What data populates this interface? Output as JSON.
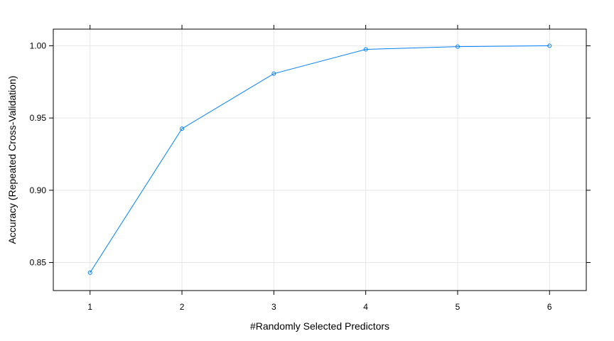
{
  "chart_data": {
    "type": "line",
    "xlabel": "#Randomly Selected Predictors",
    "ylabel": "Accuracy (Repeated Cross-Validation)",
    "xlim": [
      0.6,
      6.4
    ],
    "ylim": [
      0.8306,
      1.0115
    ],
    "x_ticks": [
      1,
      2,
      3,
      4,
      5,
      6
    ],
    "y_ticks": [
      0.85,
      0.9,
      0.95,
      1.0
    ],
    "x_tick_labels": [
      "1",
      "2",
      "3",
      "4",
      "5",
      "6"
    ],
    "y_tick_labels": [
      "0.85",
      "0.90",
      "0.95",
      "1.00"
    ],
    "grid": true,
    "line_color": "#0080ff",
    "grid_color": "#e6e6e6",
    "series": [
      {
        "x": [
          1,
          2,
          3,
          4,
          5,
          6
        ],
        "values": [
          0.843,
          0.9426,
          0.9807,
          0.9975,
          0.9994,
          1.0
        ]
      }
    ]
  }
}
